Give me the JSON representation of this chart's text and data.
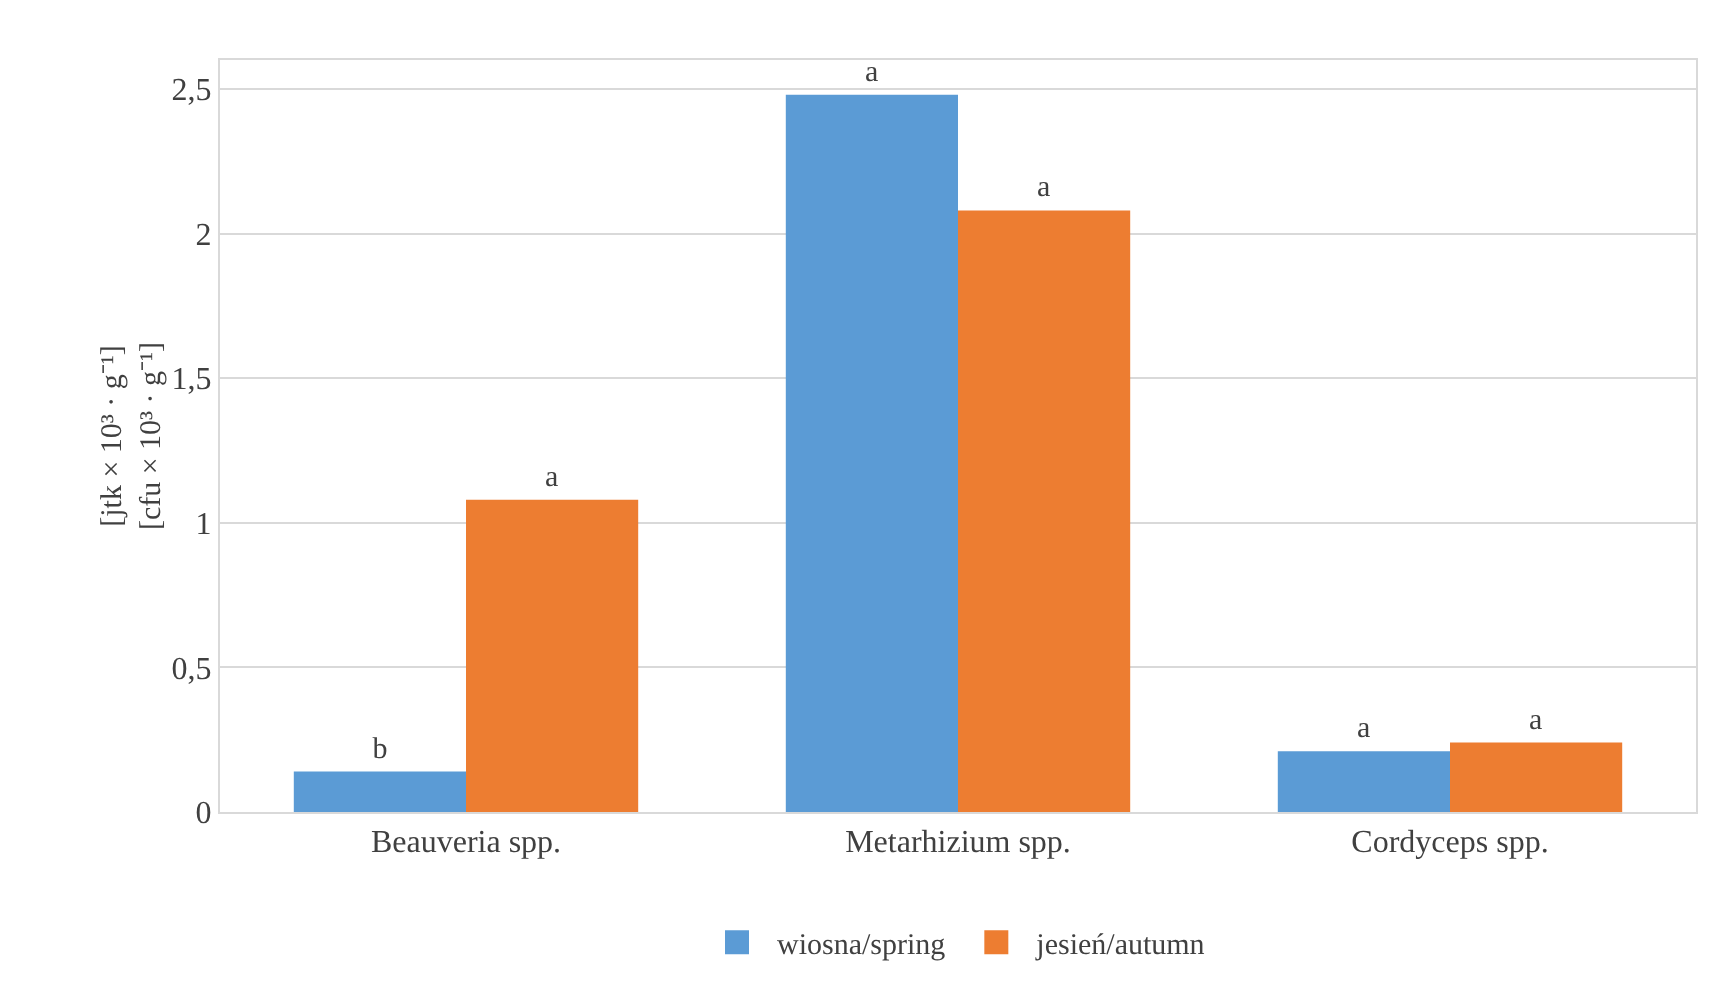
{
  "chart_data": {
    "type": "bar",
    "categories": [
      "Beauveria spp.",
      "Metarhizium spp.",
      "Cordyceps spp."
    ],
    "series": [
      {
        "name": "wiosna/spring",
        "color": "#5b9bd5",
        "values": [
          0.14,
          2.48,
          0.21
        ],
        "value_labels": [
          "b",
          "a",
          "a"
        ]
      },
      {
        "name": "jesień/autumn",
        "color": "#ed7d31",
        "values": [
          1.08,
          2.08,
          0.24
        ],
        "value_labels": [
          "a",
          "a",
          "a"
        ]
      }
    ],
    "ylabel": "[jtk × 10³ · g⁻¹]\n[cfu × 10³ · g⁻¹]",
    "ylim": [
      0,
      2.6
    ],
    "yticks": [
      0,
      {
        "value": 0.5,
        "label": "0,5"
      },
      1,
      {
        "value": 1.5,
        "label": "1,5"
      },
      2,
      {
        "value": 2.5,
        "label": "2,5"
      }
    ],
    "grid": "y",
    "legend": "bottom"
  }
}
